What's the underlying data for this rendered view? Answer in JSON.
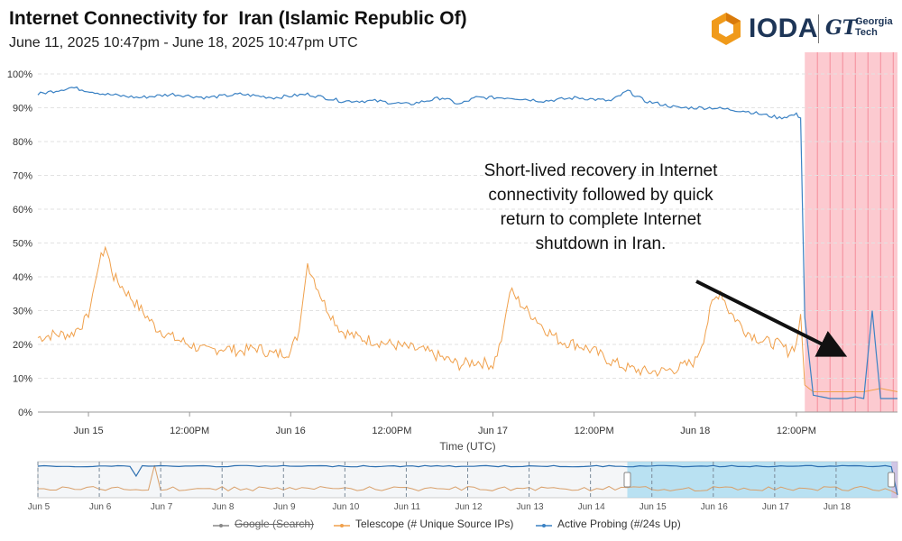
{
  "header": {
    "title": "Internet Connectivity for  Iran (Islamic Republic Of)",
    "subtitle": "June 11, 2025 10:47pm - June 18, 2025 10:47pm UTC"
  },
  "logo": {
    "name": "IODA",
    "partner_mark": "GT",
    "partner_line1": "Georgia",
    "partner_line2": "Tech",
    "icon": "ioda-hexagon-icon"
  },
  "annotation": {
    "text": "Short-lived recovery in Internet connectivity followed by quick return to complete Internet shutdown in Iran."
  },
  "legend": [
    {
      "label": "Google (Search)",
      "color": "#888888",
      "disabled": true
    },
    {
      "label": "Telescope (# Unique Source IPs)",
      "color": "#f0a04b",
      "disabled": false
    },
    {
      "label": "Active Probing (#/24s Up)",
      "color": "#3b82c4",
      "disabled": false
    }
  ],
  "chart_data": {
    "type": "line",
    "xlabel": "Time (UTC)",
    "ylabel": "",
    "ylim": [
      0,
      100
    ],
    "y_ticks": [
      "0%",
      "10%",
      "20%",
      "30%",
      "40%",
      "50%",
      "60%",
      "70%",
      "80%",
      "90%",
      "100%"
    ],
    "x_tick_labels": [
      "Jun 15",
      "12:00PM",
      "Jun 16",
      "12:00PM",
      "Jun 17",
      "12:00PM",
      "Jun 18",
      "12:00PM"
    ],
    "x_tick_hours": [
      6,
      18,
      30,
      42,
      54,
      66,
      78,
      90
    ],
    "x_range_hours": [
      0,
      102
    ],
    "grid": true,
    "highlight_range_hours": [
      91,
      102
    ],
    "highlight_color": "#fbb8c0",
    "series": [
      {
        "name": "Active Probing (#/24s Up)",
        "color": "#3b82c4",
        "x": [
          0,
          4,
          8,
          12,
          16,
          20,
          24,
          28,
          32,
          36,
          40,
          44,
          48,
          50,
          52,
          56,
          60,
          64,
          68,
          70,
          72,
          76,
          80,
          84,
          88,
          90,
          90.5,
          91,
          92,
          94,
          96,
          97,
          98,
          99,
          100,
          101,
          102
        ],
        "y": [
          94,
          96,
          94,
          93,
          94,
          93,
          94,
          93,
          94,
          92,
          92,
          91,
          93,
          91,
          93,
          93,
          92,
          93,
          92,
          95,
          92,
          90,
          90,
          89,
          87,
          88,
          87,
          28,
          5,
          4,
          4,
          4.5,
          4,
          30,
          4,
          4,
          4
        ]
      },
      {
        "name": "Telescope (# Unique Source IPs)",
        "color": "#f0a04b",
        "x": [
          0,
          2,
          4,
          6,
          7,
          8,
          9,
          10,
          11,
          12,
          13,
          14,
          16,
          18,
          20,
          22,
          24,
          26,
          28,
          30,
          31,
          32,
          33,
          34,
          35,
          36,
          38,
          40,
          42,
          44,
          46,
          48,
          50,
          52,
          54,
          55,
          56,
          57,
          58,
          59,
          60,
          62,
          64,
          66,
          68,
          70,
          72,
          74,
          76,
          78,
          79,
          80,
          81,
          82,
          83,
          84,
          86,
          88,
          89,
          90,
          90.5,
          91,
          92,
          94,
          96,
          98,
          100,
          102
        ],
        "y": [
          22,
          23,
          23,
          28,
          42,
          49,
          40,
          37,
          34,
          31,
          28,
          25,
          22,
          20,
          18,
          19,
          18,
          19,
          17,
          18,
          24,
          44,
          38,
          32,
          28,
          24,
          22,
          21,
          20,
          19,
          18,
          16,
          14,
          15,
          14,
          21,
          36,
          33,
          30,
          28,
          25,
          21,
          20,
          18,
          15,
          13,
          12,
          12,
          13,
          15,
          22,
          32,
          36,
          30,
          27,
          24,
          21,
          20,
          18,
          20,
          29,
          8,
          6,
          6,
          6,
          6,
          7,
          6
        ]
      }
    ]
  },
  "navigator": {
    "date_labels": [
      "Jun 5",
      "Jun 6",
      "Jun 7",
      "Jun 8",
      "Jun 9",
      "Jun 10",
      "Jun 11",
      "Jun 12",
      "Jun 13",
      "Jun 14",
      "Jun 15",
      "Jun 16",
      "Jun 17",
      "Jun 18"
    ],
    "selected_range_days": [
      9.6,
      13.9
    ],
    "x_range_days": [
      0,
      14.0
    ]
  }
}
